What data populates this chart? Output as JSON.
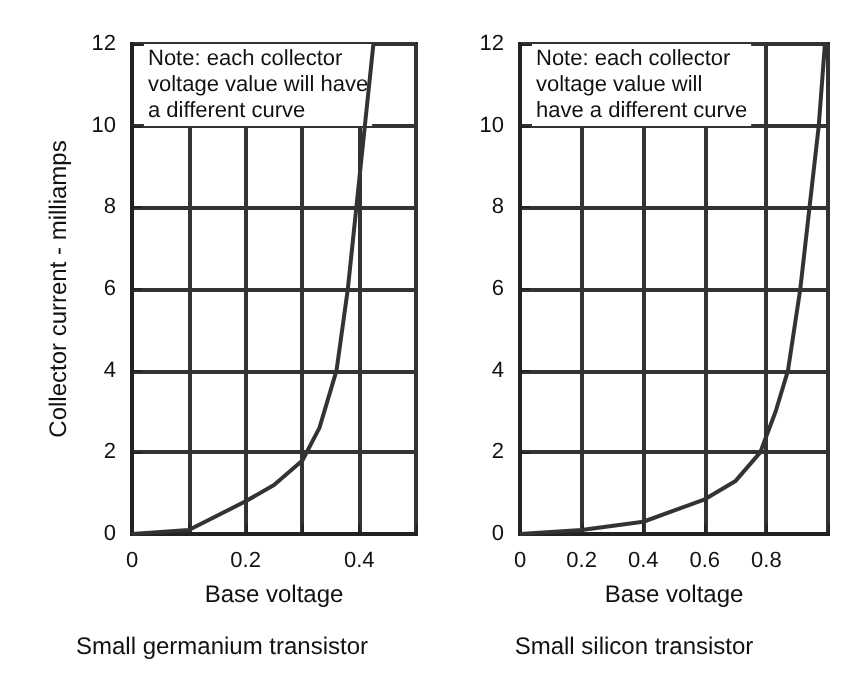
{
  "chart_data": [
    {
      "type": "line",
      "xlabel": "Base voltage",
      "ylabel": "Collector current - milliamps",
      "subtitle": "Small germanium transistor",
      "annotations": [
        "Note: each collector\nvoltage value will have\na different curve"
      ],
      "grid": true,
      "marker": "none",
      "line_style": "solid",
      "xlim": [
        0,
        0.5
      ],
      "xticks": [
        0,
        {
          "value": 0.1,
          "label": null
        },
        0.2,
        {
          "value": 0.3,
          "label": null
        },
        0.4,
        {
          "value": 0.5,
          "label": null
        }
      ],
      "ylim": [
        0,
        12
      ],
      "yticks": [
        0,
        2,
        4,
        6,
        8,
        10,
        12
      ],
      "x": [
        0,
        0.1,
        0.2,
        0.25,
        0.3,
        0.33,
        0.36,
        0.38,
        0.395,
        0.41,
        0.425
      ],
      "series": [
        {
          "color": "#333333",
          "values": [
            0,
            0.1,
            0.8,
            1.2,
            1.8,
            2.6,
            4,
            6,
            8,
            10,
            12
          ]
        }
      ]
    },
    {
      "type": "line",
      "xlabel": "Base voltage",
      "subtitle": "Small silicon transistor",
      "annotations": [
        "Note: each collector\nvoltage value will\nhave a different curve"
      ],
      "grid": true,
      "marker": "none",
      "line_style": "solid",
      "xlim": [
        0,
        1
      ],
      "xticks": [
        0,
        0.2,
        0.4,
        0.6,
        0.8,
        {
          "value": 1,
          "label": null
        }
      ],
      "ylim": [
        0,
        12
      ],
      "yticks": [
        0,
        2,
        4,
        6,
        8,
        10,
        12
      ],
      "x": [
        0,
        0.2,
        0.4,
        0.6,
        0.7,
        0.78,
        0.83,
        0.87,
        0.91,
        0.94,
        0.97,
        0.99
      ],
      "series": [
        {
          "color": "#333333",
          "values": [
            0,
            0.1,
            0.3,
            0.85,
            1.3,
            2,
            3,
            4,
            6,
            8,
            10,
            12
          ]
        }
      ]
    }
  ]
}
